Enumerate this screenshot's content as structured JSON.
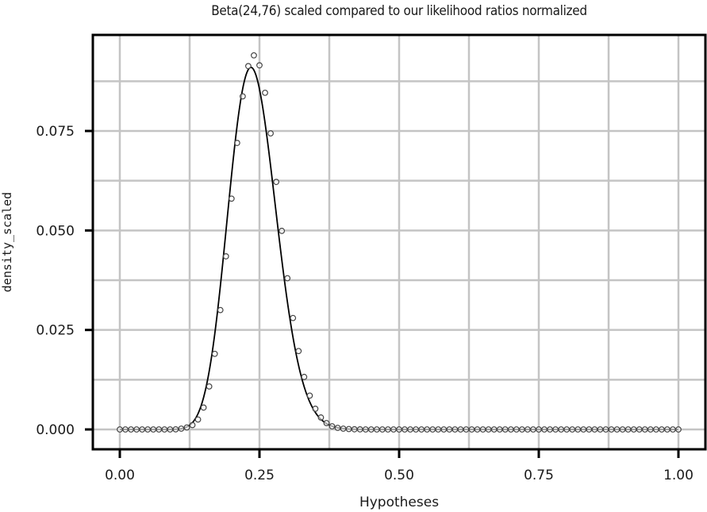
{
  "title": "Beta(24,76) scaled compared to our likelihood ratios normalized",
  "colors": {
    "background": "#ffffff",
    "grid": "#c4c4c4",
    "frame": "#000000",
    "line": "#000000",
    "points": "#444444"
  },
  "chart_data": {
    "type": "line",
    "title": "Beta(24,76) scaled compared to our likelihood ratios normalized",
    "xlabel": "Hypotheses",
    "ylabel": "density_scaled",
    "xlim": [
      0,
      1
    ],
    "ylim": [
      0,
      0.094
    ],
    "grid": true,
    "legend": "none",
    "x_ticks": [
      "0.00",
      "0.25",
      "0.50",
      "0.75",
      "1.00"
    ],
    "y_ticks": [
      "0.000",
      "0.025",
      "0.050",
      "0.075"
    ],
    "series": [
      {
        "name": "Beta(24,76) scaled",
        "kind": "line",
        "description": "Scaled Beta(24,76) density curve over hypotheses 0..1"
      },
      {
        "name": "likelihood ratios normalized",
        "kind": "scatter",
        "marker": "open-circle",
        "x": [
          0.0,
          0.01,
          0.02,
          0.03,
          0.04,
          0.05,
          0.06,
          0.07,
          0.08,
          0.09,
          0.1,
          0.11,
          0.12,
          0.13,
          0.14,
          0.15,
          0.16,
          0.17,
          0.18,
          0.19,
          0.2,
          0.21,
          0.22,
          0.23,
          0.24,
          0.25,
          0.26,
          0.27,
          0.28,
          0.29,
          0.3,
          0.31,
          0.32,
          0.33,
          0.34,
          0.35,
          0.36,
          0.37,
          0.38,
          0.39,
          0.4,
          0.41,
          0.42,
          0.43,
          0.44,
          0.45,
          0.46,
          0.47,
          0.48,
          0.49,
          0.5,
          0.51,
          0.52,
          0.53,
          0.54,
          0.55,
          0.56,
          0.57,
          0.58,
          0.59,
          0.6,
          0.61,
          0.62,
          0.63,
          0.64,
          0.65,
          0.66,
          0.67,
          0.68,
          0.69,
          0.7,
          0.71,
          0.72,
          0.73,
          0.74,
          0.75,
          0.76,
          0.77,
          0.78,
          0.79,
          0.8,
          0.81,
          0.82,
          0.83,
          0.84,
          0.85,
          0.86,
          0.87,
          0.88,
          0.89,
          0.9,
          0.91,
          0.92,
          0.93,
          0.94,
          0.95,
          0.96,
          0.97,
          0.98,
          0.99,
          1.0
        ],
        "y": [
          0,
          0,
          0,
          0,
          0,
          0,
          0,
          0,
          0,
          0,
          3e-05,
          0.0002,
          0.0005,
          0.0011,
          0.0025,
          0.0055,
          0.0108,
          0.019,
          0.03,
          0.0435,
          0.058,
          0.072,
          0.0837,
          0.0913,
          0.094,
          0.0915,
          0.0846,
          0.0744,
          0.0622,
          0.0499,
          0.038,
          0.028,
          0.0197,
          0.0132,
          0.0085,
          0.0052,
          0.003,
          0.0016,
          0.0008,
          0.0004,
          0.0002,
          0.0001,
          4e-05,
          2e-05,
          0,
          0,
          0,
          0,
          0,
          0,
          0,
          0,
          0,
          0,
          0,
          0,
          0,
          0,
          0,
          0,
          0,
          0,
          0,
          0,
          0,
          0,
          0,
          0,
          0,
          0,
          0,
          0,
          0,
          0,
          0,
          0,
          0,
          0,
          0,
          0,
          0,
          0,
          0,
          0,
          0,
          0,
          0,
          0,
          0,
          0,
          0,
          0,
          0,
          0,
          0,
          0,
          0,
          0,
          0,
          0,
          0
        ]
      }
    ]
  }
}
